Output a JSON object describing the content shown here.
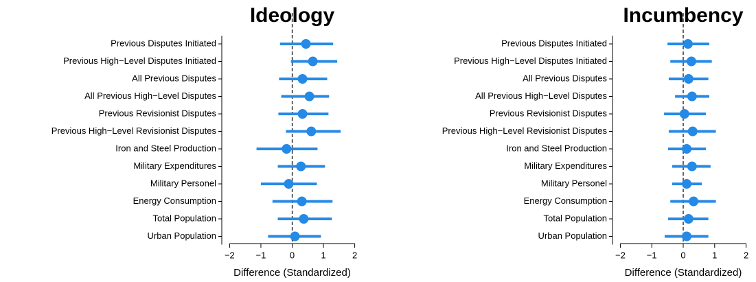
{
  "chart_data": [
    {
      "type": "coefplot",
      "title": "Ideology",
      "xlabel": "Difference (Standardized)",
      "categories": [
        "Previous Disputes Initiated",
        "Previous High−Level Disputes Initiated",
        "All Previous Disputes",
        "All Previous High−Level Disputes",
        "Previous Revisionist Disputes",
        "Previous High−Level Revisionist Disputes",
        "Iron and Steel Production",
        "Military Expenditures",
        "Military Personel",
        "Energy Consumption",
        "Total Population",
        "Urban Population"
      ],
      "values": [
        0.44,
        0.66,
        0.33,
        0.55,
        0.33,
        0.61,
        -0.18,
        0.28,
        -0.11,
        0.31,
        0.37,
        0.09
      ],
      "lower": [
        -0.39,
        -0.04,
        -0.42,
        -0.35,
        -0.44,
        -0.2,
        -1.14,
        -0.46,
        -1.0,
        -0.63,
        -0.46,
        -0.77
      ],
      "upper": [
        1.31,
        1.44,
        1.12,
        1.18,
        1.16,
        1.55,
        0.81,
        1.05,
        0.79,
        1.29,
        1.27,
        0.92
      ],
      "color": "#2589e6",
      "refline": 0,
      "xlim": [
        -2.25,
        2.25
      ],
      "xticks": [
        {
          "value": -2,
          "label": "−2"
        },
        {
          "value": -1,
          "label": "−1"
        },
        0,
        1,
        2
      ]
    },
    {
      "type": "coefplot",
      "title": "Incumbency",
      "xlabel": "Difference (Standardized)",
      "categories": [
        "Previous Disputes Initiated",
        "Previous High−Level Disputes Initiated",
        "All Previous Disputes",
        "All Previous High−Level Disputes",
        "Previous Revisionist Disputes",
        "Previous High−Level Revisionist Disputes",
        "Iron and Steel Production",
        "Military Expenditures",
        "Military Personel",
        "Energy Consumption",
        "Total Population",
        "Urban Population"
      ],
      "values": [
        0.15,
        0.26,
        0.17,
        0.28,
        0.04,
        0.3,
        0.11,
        0.28,
        0.11,
        0.33,
        0.17,
        0.11
      ],
      "lower": [
        -0.5,
        -0.41,
        -0.46,
        -0.26,
        -0.61,
        -0.46,
        -0.48,
        -0.35,
        -0.35,
        -0.41,
        -0.48,
        -0.59
      ],
      "upper": [
        0.83,
        0.91,
        0.8,
        0.83,
        0.72,
        1.04,
        0.72,
        0.87,
        0.59,
        1.04,
        0.8,
        0.8
      ],
      "color": "#2589e6",
      "refline": 0,
      "xlim": [
        -2.25,
        2.25
      ],
      "xticks": [
        {
          "value": -2,
          "label": "−2"
        },
        {
          "value": -1,
          "label": "−1"
        },
        0,
        1,
        2
      ]
    }
  ]
}
